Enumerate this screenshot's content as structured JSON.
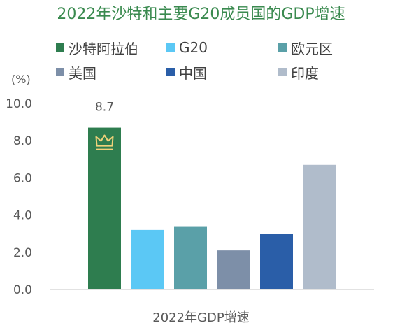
{
  "chart_data": {
    "type": "bar",
    "title": "2022年沙特和主要G20成员国的GDP增速",
    "unit": "(%)",
    "xlabel": "2022年GDP增速",
    "categories": [
      "2022年GDP增速"
    ],
    "ylim": [
      0,
      10
    ],
    "yticks": [
      "0.0",
      "2.0",
      "4.0",
      "6.0",
      "8.0",
      "10.0"
    ],
    "grid": false,
    "legend": "top",
    "series": [
      {
        "name": "沙特阿拉伯",
        "values": [
          8.7
        ],
        "color": "#2e7d4f",
        "data_label": "8.7",
        "icon": "crown-icon"
      },
      {
        "name": "G20",
        "values": [
          3.2
        ],
        "color": "#5bc8f5"
      },
      {
        "name": "欧元区",
        "values": [
          3.4
        ],
        "color": "#5aa0a8"
      },
      {
        "name": "美国",
        "values": [
          2.1
        ],
        "color": "#7d8fa8"
      },
      {
        "name": "中国",
        "values": [
          3.0
        ],
        "color": "#2a5ea8"
      },
      {
        "name": "印度",
        "values": [
          6.7
        ],
        "color": "#b0bccb"
      }
    ]
  }
}
